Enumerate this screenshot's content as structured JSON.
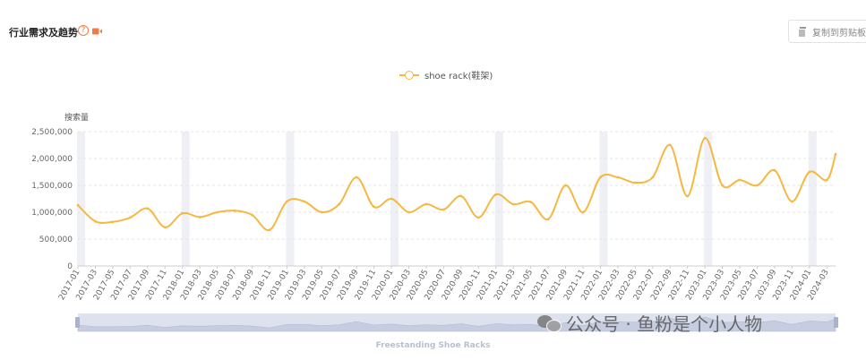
{
  "header": {
    "title": "行业需求及趋势",
    "help_glyph": "?",
    "copy_label": "复制到剪贴板"
  },
  "legend": {
    "series_name": "shoe rack(鞋架)"
  },
  "watermark": {
    "text": "公众号 · 鱼粉是个小人物"
  },
  "slider": {
    "label": "Freestanding Shoe Racks"
  },
  "colors": {
    "line": "#f5b841",
    "grid": "#e6e6e6",
    "band": "#eef0f6",
    "slider_bg": "#dde2ee"
  },
  "chart_data": {
    "type": "line",
    "ylabel": "搜索量",
    "ylim": [
      0,
      2500000
    ],
    "yticks": [
      0,
      500000,
      1000000,
      1500000,
      2000000,
      2500000
    ],
    "ytick_labels": [
      "0",
      "500,000",
      "1,000,000",
      "1,500,000",
      "2,000,000",
      "2,500,000"
    ],
    "x_start": "2017-01",
    "x_end": "2024-04",
    "xtick_labels": [
      "2017-01",
      "2017-03",
      "2017-05",
      "2017-07",
      "2017-09",
      "2017-11",
      "2018-01",
      "2018-03",
      "2018-05",
      "2018-07",
      "2018-09",
      "2018-11",
      "2019-01",
      "2019-03",
      "2019-05",
      "2019-07",
      "2019-09",
      "2019-11",
      "2020-01",
      "2020-03",
      "2020-05",
      "2020-07",
      "2020-09",
      "2020-11",
      "2021-01",
      "2021-03",
      "2021-05",
      "2021-07",
      "2021-09",
      "2021-11",
      "2022-01",
      "2022-03",
      "2022-05",
      "2022-07",
      "2022-09",
      "2022-11",
      "2023-01",
      "2023-03",
      "2023-05",
      "2023-07",
      "2023-09",
      "2023-11",
      "2024-01",
      "2024-03"
    ],
    "series": [
      {
        "name": "shoe rack(鞋架)",
        "x": [
          "2017-01",
          "2017-03",
          "2017-05",
          "2017-07",
          "2017-09",
          "2017-11",
          "2018-01",
          "2018-03",
          "2018-05",
          "2018-07",
          "2018-09",
          "2018-11",
          "2019-01",
          "2019-03",
          "2019-05",
          "2019-07",
          "2019-09",
          "2019-11",
          "2020-01",
          "2020-03",
          "2020-05",
          "2020-07",
          "2020-09",
          "2020-11",
          "2021-01",
          "2021-03",
          "2021-05",
          "2021-07",
          "2021-09",
          "2021-11",
          "2022-01",
          "2022-03",
          "2022-05",
          "2022-07",
          "2022-09",
          "2022-11",
          "2023-01",
          "2023-03",
          "2023-05",
          "2023-07",
          "2023-09",
          "2023-11",
          "2024-01",
          "2024-03",
          "2024-04"
        ],
        "values": [
          1130000,
          830000,
          820000,
          900000,
          1070000,
          720000,
          980000,
          910000,
          1000000,
          1030000,
          950000,
          670000,
          1200000,
          1200000,
          1000000,
          1150000,
          1650000,
          1100000,
          1250000,
          1000000,
          1150000,
          1050000,
          1300000,
          900000,
          1330000,
          1150000,
          1190000,
          870000,
          1500000,
          1000000,
          1650000,
          1650000,
          1550000,
          1650000,
          2250000,
          1300000,
          2380000,
          1500000,
          1600000,
          1500000,
          1780000,
          1200000,
          1750000,
          1600000,
          2080000
        ]
      }
    ]
  }
}
